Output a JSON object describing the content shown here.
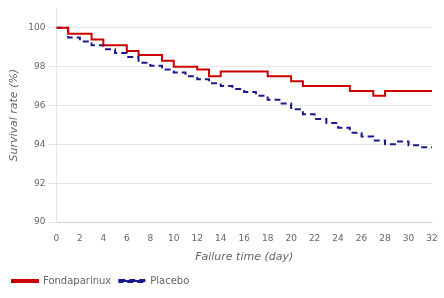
{
  "chart_data": {
    "type": "line",
    "xlabel": "Failure time (day)",
    "ylabel": "Survival rate (%)",
    "xlim": [
      0,
      32
    ],
    "ylim": [
      90,
      101
    ],
    "xticks": [
      0,
      2,
      4,
      6,
      8,
      10,
      12,
      14,
      16,
      18,
      20,
      22,
      24,
      26,
      28,
      30,
      32
    ],
    "yticks": [
      90,
      92,
      94,
      96,
      98,
      100
    ],
    "grid": "y",
    "legend": "lower left",
    "series": [
      {
        "name": "Fondaparinux",
        "color": "#cc0000",
        "line_style": "solid",
        "x": [
          0,
          1,
          1,
          3,
          3,
          4,
          4,
          6,
          6,
          7,
          7,
          9,
          9,
          10,
          10,
          12,
          12,
          13,
          13,
          14,
          14,
          18,
          18,
          20,
          20,
          21,
          21,
          25,
          25,
          27,
          27,
          28,
          28,
          32
        ],
        "values": [
          100,
          100,
          99.7,
          99.7,
          99.4,
          99.4,
          99.1,
          99.1,
          98.8,
          98.8,
          98.6,
          98.6,
          98.3,
          98.3,
          98.0,
          98.0,
          97.85,
          97.85,
          97.5,
          97.5,
          97.75,
          97.75,
          97.5,
          97.5,
          97.25,
          97.25,
          97.0,
          97.0,
          96.75,
          96.75,
          96.5,
          96.5,
          96.75,
          96.75
        ]
      },
      {
        "name": "Placebo",
        "color": "#1a1a8c",
        "line_style": "dashed",
        "x": [
          0,
          1,
          1,
          2,
          2,
          3,
          3,
          4,
          4,
          5,
          5,
          6,
          6,
          7,
          7,
          8,
          8,
          9,
          9,
          10,
          10,
          11,
          11,
          12,
          12,
          13,
          13,
          14,
          14,
          15,
          15,
          16,
          16,
          17,
          17,
          18,
          18,
          19,
          19,
          20,
          20,
          21,
          21,
          22,
          22,
          23,
          23,
          24,
          24,
          25,
          25,
          26,
          26,
          27,
          27,
          28,
          28,
          29,
          29,
          30,
          30,
          31,
          31,
          32
        ],
        "values": [
          100,
          100,
          99.5,
          99.5,
          99.3,
          99.3,
          99.1,
          99.1,
          98.9,
          98.9,
          98.7,
          98.7,
          98.5,
          98.5,
          98.2,
          98.2,
          98.05,
          98.05,
          97.85,
          97.85,
          97.7,
          97.7,
          97.5,
          97.5,
          97.35,
          97.35,
          97.15,
          97.15,
          97.0,
          97.0,
          96.85,
          96.85,
          96.7,
          96.7,
          96.5,
          96.5,
          96.3,
          96.3,
          96.1,
          96.1,
          95.8,
          95.8,
          95.55,
          95.55,
          95.3,
          95.3,
          95.1,
          95.1,
          94.85,
          94.85,
          94.6,
          94.6,
          94.4,
          94.4,
          94.2,
          94.2,
          94.0,
          94.0,
          94.15,
          94.15,
          93.95,
          93.95,
          93.85,
          93.85
        ]
      }
    ]
  }
}
